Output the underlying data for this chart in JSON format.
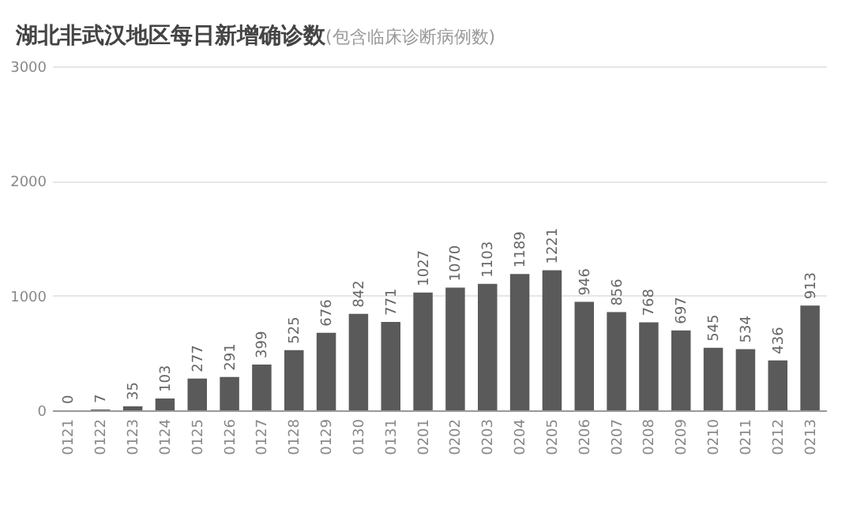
{
  "chart_data": {
    "type": "bar",
    "title": "湖北非武汉地区每日新增确诊数",
    "subtitle": "(包含临床诊断病例数)",
    "categories": [
      "0121",
      "0122",
      "0123",
      "0124",
      "0125",
      "0126",
      "0127",
      "0128",
      "0129",
      "0130",
      "0131",
      "0201",
      "0202",
      "0203",
      "0204",
      "0205",
      "0206",
      "0207",
      "0208",
      "0209",
      "0210",
      "0211",
      "0212",
      "0213"
    ],
    "values": [
      0,
      7,
      35,
      103,
      277,
      291,
      399,
      525,
      676,
      842,
      771,
      1027,
      1070,
      1103,
      1189,
      1221,
      946,
      856,
      768,
      697,
      545,
      534,
      436,
      913
    ],
    "color": "#5a5a5a",
    "ylim": [
      0,
      3000
    ],
    "yticks": [
      0,
      1000,
      2000,
      3000
    ],
    "grid": "y",
    "data_labels": true
  }
}
